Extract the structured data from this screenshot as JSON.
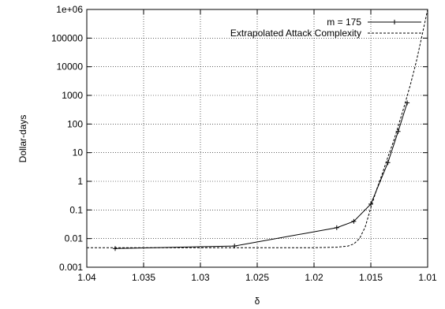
{
  "chart_data": {
    "type": "line",
    "title": "",
    "xlabel": "δ",
    "ylabel": "Dollar-days",
    "xlim": [
      1.04,
      1.01
    ],
    "x_reversed": true,
    "ylim": [
      0.001,
      1000000
    ],
    "y_scale": "log",
    "grid": true,
    "legend_position": "top-right",
    "x_ticks": [
      "1.04",
      "1.035",
      "1.03",
      "1.025",
      "1.02",
      "1.015",
      "1.01"
    ],
    "x_tick_values": [
      1.04,
      1.035,
      1.03,
      1.025,
      1.02,
      1.015,
      1.01
    ],
    "y_ticks": [
      "0.001",
      "0.01",
      "0.1",
      "1",
      "10",
      "100",
      "1000",
      "10000",
      "100000",
      "1e+06"
    ],
    "y_tick_values": [
      0.001,
      0.01,
      0.1,
      1,
      10,
      100,
      1000,
      10000,
      100000,
      1000000
    ],
    "series": [
      {
        "name": "m = 175",
        "style": "solid-with-markers",
        "color": "#000000",
        "x": [
          1.0375,
          1.027,
          1.018,
          1.0165,
          1.015,
          1.0135,
          1.0126,
          1.0118
        ],
        "y": [
          0.0045,
          0.0055,
          0.024,
          0.04,
          0.16,
          4.5,
          55,
          550
        ]
      },
      {
        "name": "Extrapolated Attack Complexity",
        "style": "dashed",
        "color": "#000000",
        "x": [
          1.04,
          1.03,
          1.025,
          1.02,
          1.018,
          1.017,
          1.0165,
          1.016,
          1.0155,
          1.015,
          1.0145,
          1.014,
          1.0135,
          1.013,
          1.0125,
          1.012,
          1.0115,
          1.011,
          1.0105,
          1.01
        ],
        "y": [
          0.0048,
          0.0048,
          0.0048,
          0.0048,
          0.005,
          0.0055,
          0.0065,
          0.01,
          0.025,
          0.12,
          0.5,
          1.8,
          7,
          25,
          110,
          500,
          2500,
          15000,
          120000,
          1000000
        ]
      }
    ]
  }
}
